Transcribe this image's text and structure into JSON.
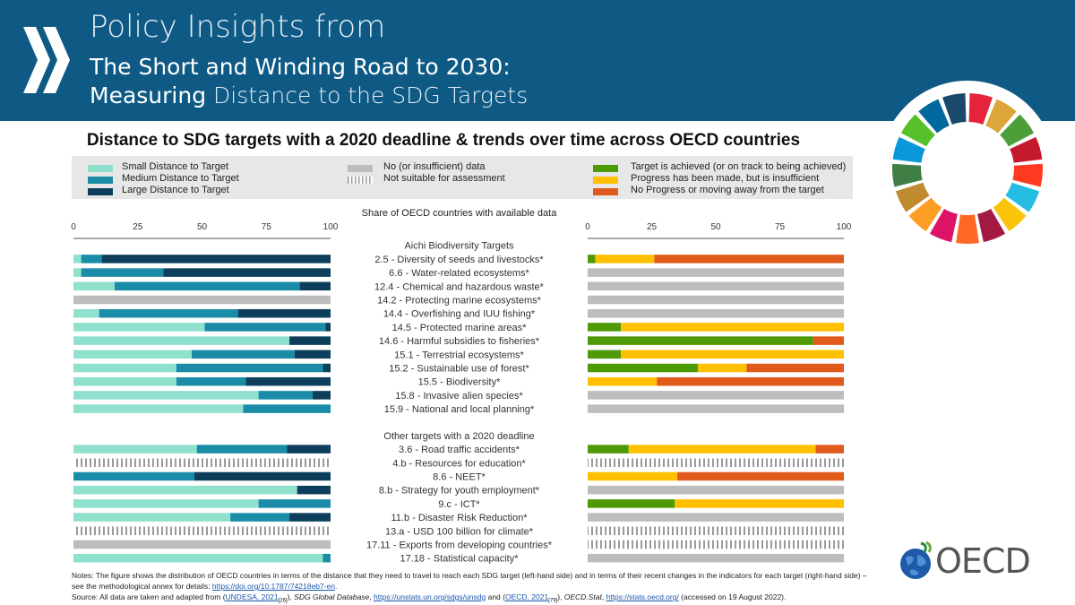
{
  "header": {
    "line1": "Policy Insights from",
    "line2": "The Short and Winding Road to 2030:",
    "line3_bold": "Measuring",
    "line3_rest": " Distance to the SDG Targets"
  },
  "colors": {
    "banner": "#0e5a85",
    "small": "#8fe0cc",
    "medium": "#1a8ca7",
    "large": "#0d3f5c",
    "nodata": "#bdbdbd",
    "achieved": "#4e9a06",
    "progress": "#ffc000",
    "noprogress": "#e05a1c"
  },
  "legend": {
    "left": [
      "Small Distance to Target",
      "Medium Distance to Target",
      "Large Distance to Target"
    ],
    "middle": [
      "No (or insufficient) data",
      "Not suitable for assessment"
    ],
    "right": [
      "Target is achieved (or on track to being achieved)",
      "Progress has been made, but is insufficient",
      "No Progress or moving away from the target"
    ]
  },
  "chart_data": {
    "type": "bar",
    "title": "Distance to SDG targets with a 2020 deadline & trends over time across OECD countries",
    "xlabel": "Share of OECD countries with available data",
    "xlim": [
      0,
      100
    ],
    "ticks": [
      "0",
      "25",
      "50",
      "75",
      "100"
    ],
    "groups": [
      {
        "name": "Aichi Biodiversity Targets",
        "rows": [
          {
            "label": "2.5 - Diversity of seeds and livestocks*",
            "distance": [
              3,
              8,
              89
            ],
            "trend": [
              3,
              23,
              74
            ]
          },
          {
            "label": "6.6 - Water-related ecosystems*",
            "distance": [
              3,
              32,
              65
            ],
            "trend": "nodata"
          },
          {
            "label": "12.4 - Chemical and hazardous waste*",
            "distance": [
              16,
              72,
              12
            ],
            "trend": "nodata"
          },
          {
            "label": "14.2 - Protecting marine ecosystems*",
            "distance": "nodata",
            "trend": "nodata"
          },
          {
            "label": "14.4 - Overfishing and IUU fishing*",
            "distance": [
              10,
              54,
              36
            ],
            "trend": "nodata"
          },
          {
            "label": "14.5 - Protected marine areas*",
            "distance": [
              51,
              47,
              2
            ],
            "trend": [
              13,
              87,
              0
            ]
          },
          {
            "label": "14.6 - Harmful subsidies to fisheries*",
            "distance": [
              84,
              0,
              16
            ],
            "trend": [
              88,
              0,
              12
            ]
          },
          {
            "label": "15.1 - Terrestrial ecosystems*",
            "distance": [
              46,
              40,
              14
            ],
            "trend": [
              13,
              87,
              0
            ]
          },
          {
            "label": "15.2 - Sustainable use of forest*",
            "distance": [
              40,
              57,
              3
            ],
            "trend": [
              43,
              19,
              38
            ]
          },
          {
            "label": "15.5 - Biodiversity*",
            "distance": [
              40,
              27,
              33
            ],
            "trend": [
              0,
              27,
              73
            ]
          },
          {
            "label": "15.8 - Invasive alien species*",
            "distance": [
              72,
              21,
              7
            ],
            "trend": "nodata"
          },
          {
            "label": "15.9 - National and local planning*",
            "distance": [
              66,
              34,
              0
            ],
            "trend": "nodata"
          }
        ]
      },
      {
        "name": "Other targets with a 2020 deadline",
        "rows": [
          {
            "label": "3.6 - Road traffic accidents*",
            "distance": [
              48,
              35,
              17
            ],
            "trend": [
              16,
              73,
              11
            ]
          },
          {
            "label": "4.b - Resources for education*",
            "distance": "unsuitable",
            "trend": "unsuitable"
          },
          {
            "label": "8.6 - NEET*",
            "distance": [
              0,
              47,
              53
            ],
            "trend": [
              0,
              35,
              65
            ]
          },
          {
            "label": "8.b - Strategy for youth employment*",
            "distance": [
              87,
              0,
              13
            ],
            "trend": "nodata"
          },
          {
            "label": "9.c - ICT*",
            "distance": [
              72,
              28,
              0
            ],
            "trend": [
              34,
              66,
              0
            ]
          },
          {
            "label": "11.b - Disaster Risk Reduction*",
            "distance": [
              61,
              23,
              16
            ],
            "trend": "nodata"
          },
          {
            "label": "13.a - USD 100 billion for climate*",
            "distance": "unsuitable",
            "trend": "unsuitable"
          },
          {
            "label": "17.11 - Exports from developing countries*",
            "distance": "nodata",
            "trend": "unsuitable"
          },
          {
            "label": "17.18 - Statistical capacity*",
            "distance": [
              97,
              3,
              0
            ],
            "trend": "nodata"
          }
        ]
      }
    ]
  },
  "notes": {
    "text": "Notes: The figure shows the distribution of OECD countries in terms of the distance that they need to travel to reach each SDG target (left-hand side) and in terms of their recent changes in the indicators for each target (right-hand side)  – see the methodological annex for details: ",
    "link": "https://doi.org/10.1787/74218eb7-en",
    "end": "."
  },
  "source": {
    "prefix": "Source: All data are taken and adapted from (",
    "ref1": "UNDESA, 2021",
    "ref1_sup": "[26]",
    "mid1": "), ",
    "db1": "SDG Global Database",
    "mid2": ", ",
    "link1": "https://unstats.un.org/sdgs/unsdg",
    "mid3": " and (",
    "ref2": "OECD, 2021",
    "ref2_sup": "[79]",
    "mid4": "), ",
    "db2": "OECD.Stat",
    "mid5": ", ",
    "link2": "https://stats.oecd.org/",
    "suffix": " (accessed on 19 August 2022)."
  },
  "logo": {
    "text": "OECD"
  }
}
